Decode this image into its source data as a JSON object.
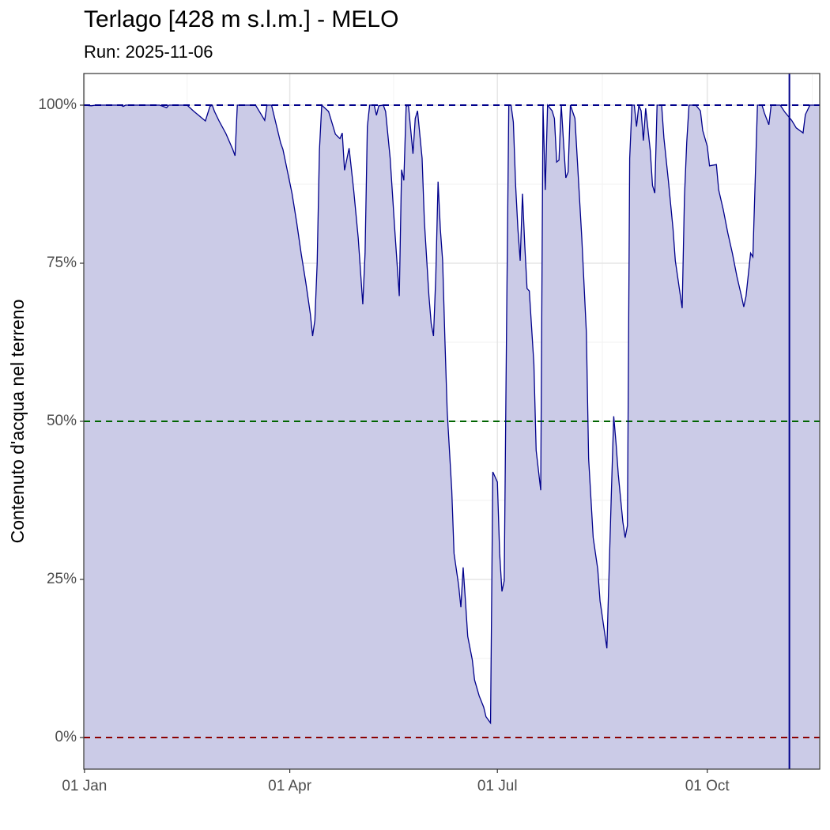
{
  "chart_data": {
    "type": "area",
    "title": "Terlago [428 m s.l.m.] - MELO",
    "subtitle": "Run: 2025-11-06",
    "ylabel": "Contenuto d'acqua nel terreno",
    "color": "#00008b",
    "fill": "#cbcbe7",
    "x": [
      0,
      3,
      5,
      16,
      17,
      18,
      33,
      36,
      37,
      45,
      48,
      50,
      53,
      55,
      56,
      57,
      59,
      62,
      65,
      66,
      67,
      75,
      77,
      79,
      80,
      82,
      84,
      86,
      87,
      89,
      91,
      93,
      95,
      97,
      99,
      100,
      101,
      102,
      103,
      104,
      107,
      110,
      112,
      113,
      114,
      116,
      118,
      120,
      122,
      123,
      124,
      125,
      127,
      128,
      129,
      131,
      132,
      134,
      136,
      138,
      139,
      140,
      141,
      142,
      144,
      145,
      146,
      148,
      149,
      151,
      152,
      153,
      154,
      155,
      156,
      157,
      158,
      159,
      161,
      162,
      164,
      165,
      166,
      167,
      168,
      170,
      171,
      173,
      175,
      176,
      178,
      179,
      181,
      182,
      183,
      184,
      185,
      186,
      187,
      188,
      189,
      190,
      191,
      192,
      193,
      194,
      195,
      197,
      198,
      200,
      201,
      202,
      203,
      205,
      206,
      207,
      208,
      209,
      210,
      211,
      212,
      213,
      215,
      216,
      218,
      220,
      221,
      223,
      225,
      226,
      228,
      229,
      231,
      232,
      233,
      234,
      236,
      237,
      238,
      239,
      240,
      241,
      242,
      243,
      244,
      245,
      246,
      248,
      249,
      250,
      251,
      253,
      254,
      256,
      258,
      259,
      261,
      262,
      263,
      264,
      265,
      268,
      270,
      271,
      273,
      274,
      277,
      278,
      280,
      282,
      284,
      286,
      288,
      289,
      290,
      292,
      293,
      295,
      297,
      298,
      300,
      301,
      305,
      307,
      310,
      312,
      315,
      316,
      318,
      322
    ],
    "values": [
      100,
      99.9,
      100,
      100,
      99.8,
      100,
      100,
      99.6,
      100,
      100,
      99,
      98.4,
      97.5,
      99.8,
      100,
      99,
      97.5,
      95.5,
      93,
      92,
      100,
      100,
      98.8,
      97.6,
      100,
      100,
      97,
      94,
      93,
      89.5,
      86,
      81.5,
      76.5,
      72,
      67,
      63.5,
      66,
      75,
      92.9,
      100,
      99,
      95.4,
      94.7,
      95.6,
      89.7,
      93.2,
      86.6,
      79,
      68.5,
      76.6,
      96.6,
      100,
      100,
      98.4,
      99.9,
      100,
      99,
      91.6,
      80.4,
      69.8,
      89.8,
      88.1,
      99.8,
      100,
      92.3,
      97.9,
      99.1,
      91.6,
      81.6,
      69.8,
      65.4,
      63.5,
      72.9,
      87.9,
      80.4,
      75.4,
      62.9,
      51.6,
      39.1,
      29.1,
      24.1,
      20.6,
      26.9,
      21.6,
      16,
      12.3,
      9.1,
      6.6,
      4.8,
      3.3,
      2.3,
      42,
      40.4,
      29.1,
      23.1,
      24.8,
      64.1,
      100,
      100,
      97.3,
      87.3,
      80.4,
      75.4,
      86,
      77.9,
      71,
      70.6,
      59.1,
      45.4,
      39.1,
      100,
      86.6,
      100,
      99.1,
      97.9,
      91,
      91.3,
      100,
      94.1,
      88.5,
      89.4,
      100,
      97.9,
      91.6,
      79,
      64.1,
      44.1,
      31.6,
      26.6,
      21.6,
      16.6,
      14.1,
      39.1,
      50.8,
      46.6,
      41.6,
      34.1,
      31.6,
      33.5,
      91.6,
      100,
      100,
      96.6,
      100,
      99.1,
      94.4,
      99.5,
      92.9,
      87.3,
      86.1,
      100,
      100,
      94.8,
      87.9,
      80.4,
      75.4,
      70.4,
      67.9,
      85.4,
      94.1,
      100,
      100,
      99.1,
      96,
      93.5,
      90.4,
      90.6,
      86.6,
      83.5,
      79.8,
      76.6,
      72.9,
      69.8,
      68.1,
      69.8,
      76.6,
      76,
      100,
      100,
      98.8,
      96.9,
      100,
      100,
      98.9,
      97.6,
      96.4,
      95.6,
      98.5,
      100,
      100
    ],
    "xlim": [
      -0.3,
      322.3
    ],
    "ylim": [
      -5,
      105
    ],
    "xticks": [
      {
        "value": 0,
        "label": "01 Jan"
      },
      {
        "value": 90,
        "label": "01 Apr"
      },
      {
        "value": 181,
        "label": "01 Jul"
      },
      {
        "value": 273,
        "label": "01 Oct"
      }
    ],
    "xminorticks": [
      45,
      135.5,
      227,
      319
    ],
    "yticks": [
      {
        "value": 0,
        "label": "0%"
      },
      {
        "value": 25,
        "label": "25%"
      },
      {
        "value": 50,
        "label": "50%"
      },
      {
        "value": 75,
        "label": "75%"
      },
      {
        "value": 100,
        "label": "100%"
      }
    ],
    "yminorticks": [
      12.5,
      37.5,
      62.5,
      87.5
    ],
    "grid": true,
    "hlines": [
      {
        "value": 100,
        "color": "#00008b"
      },
      {
        "value": 50,
        "color": "#006400"
      },
      {
        "value": 0,
        "color": "#8b0000"
      }
    ],
    "vline": {
      "value": 309,
      "color": "#00008b"
    }
  }
}
